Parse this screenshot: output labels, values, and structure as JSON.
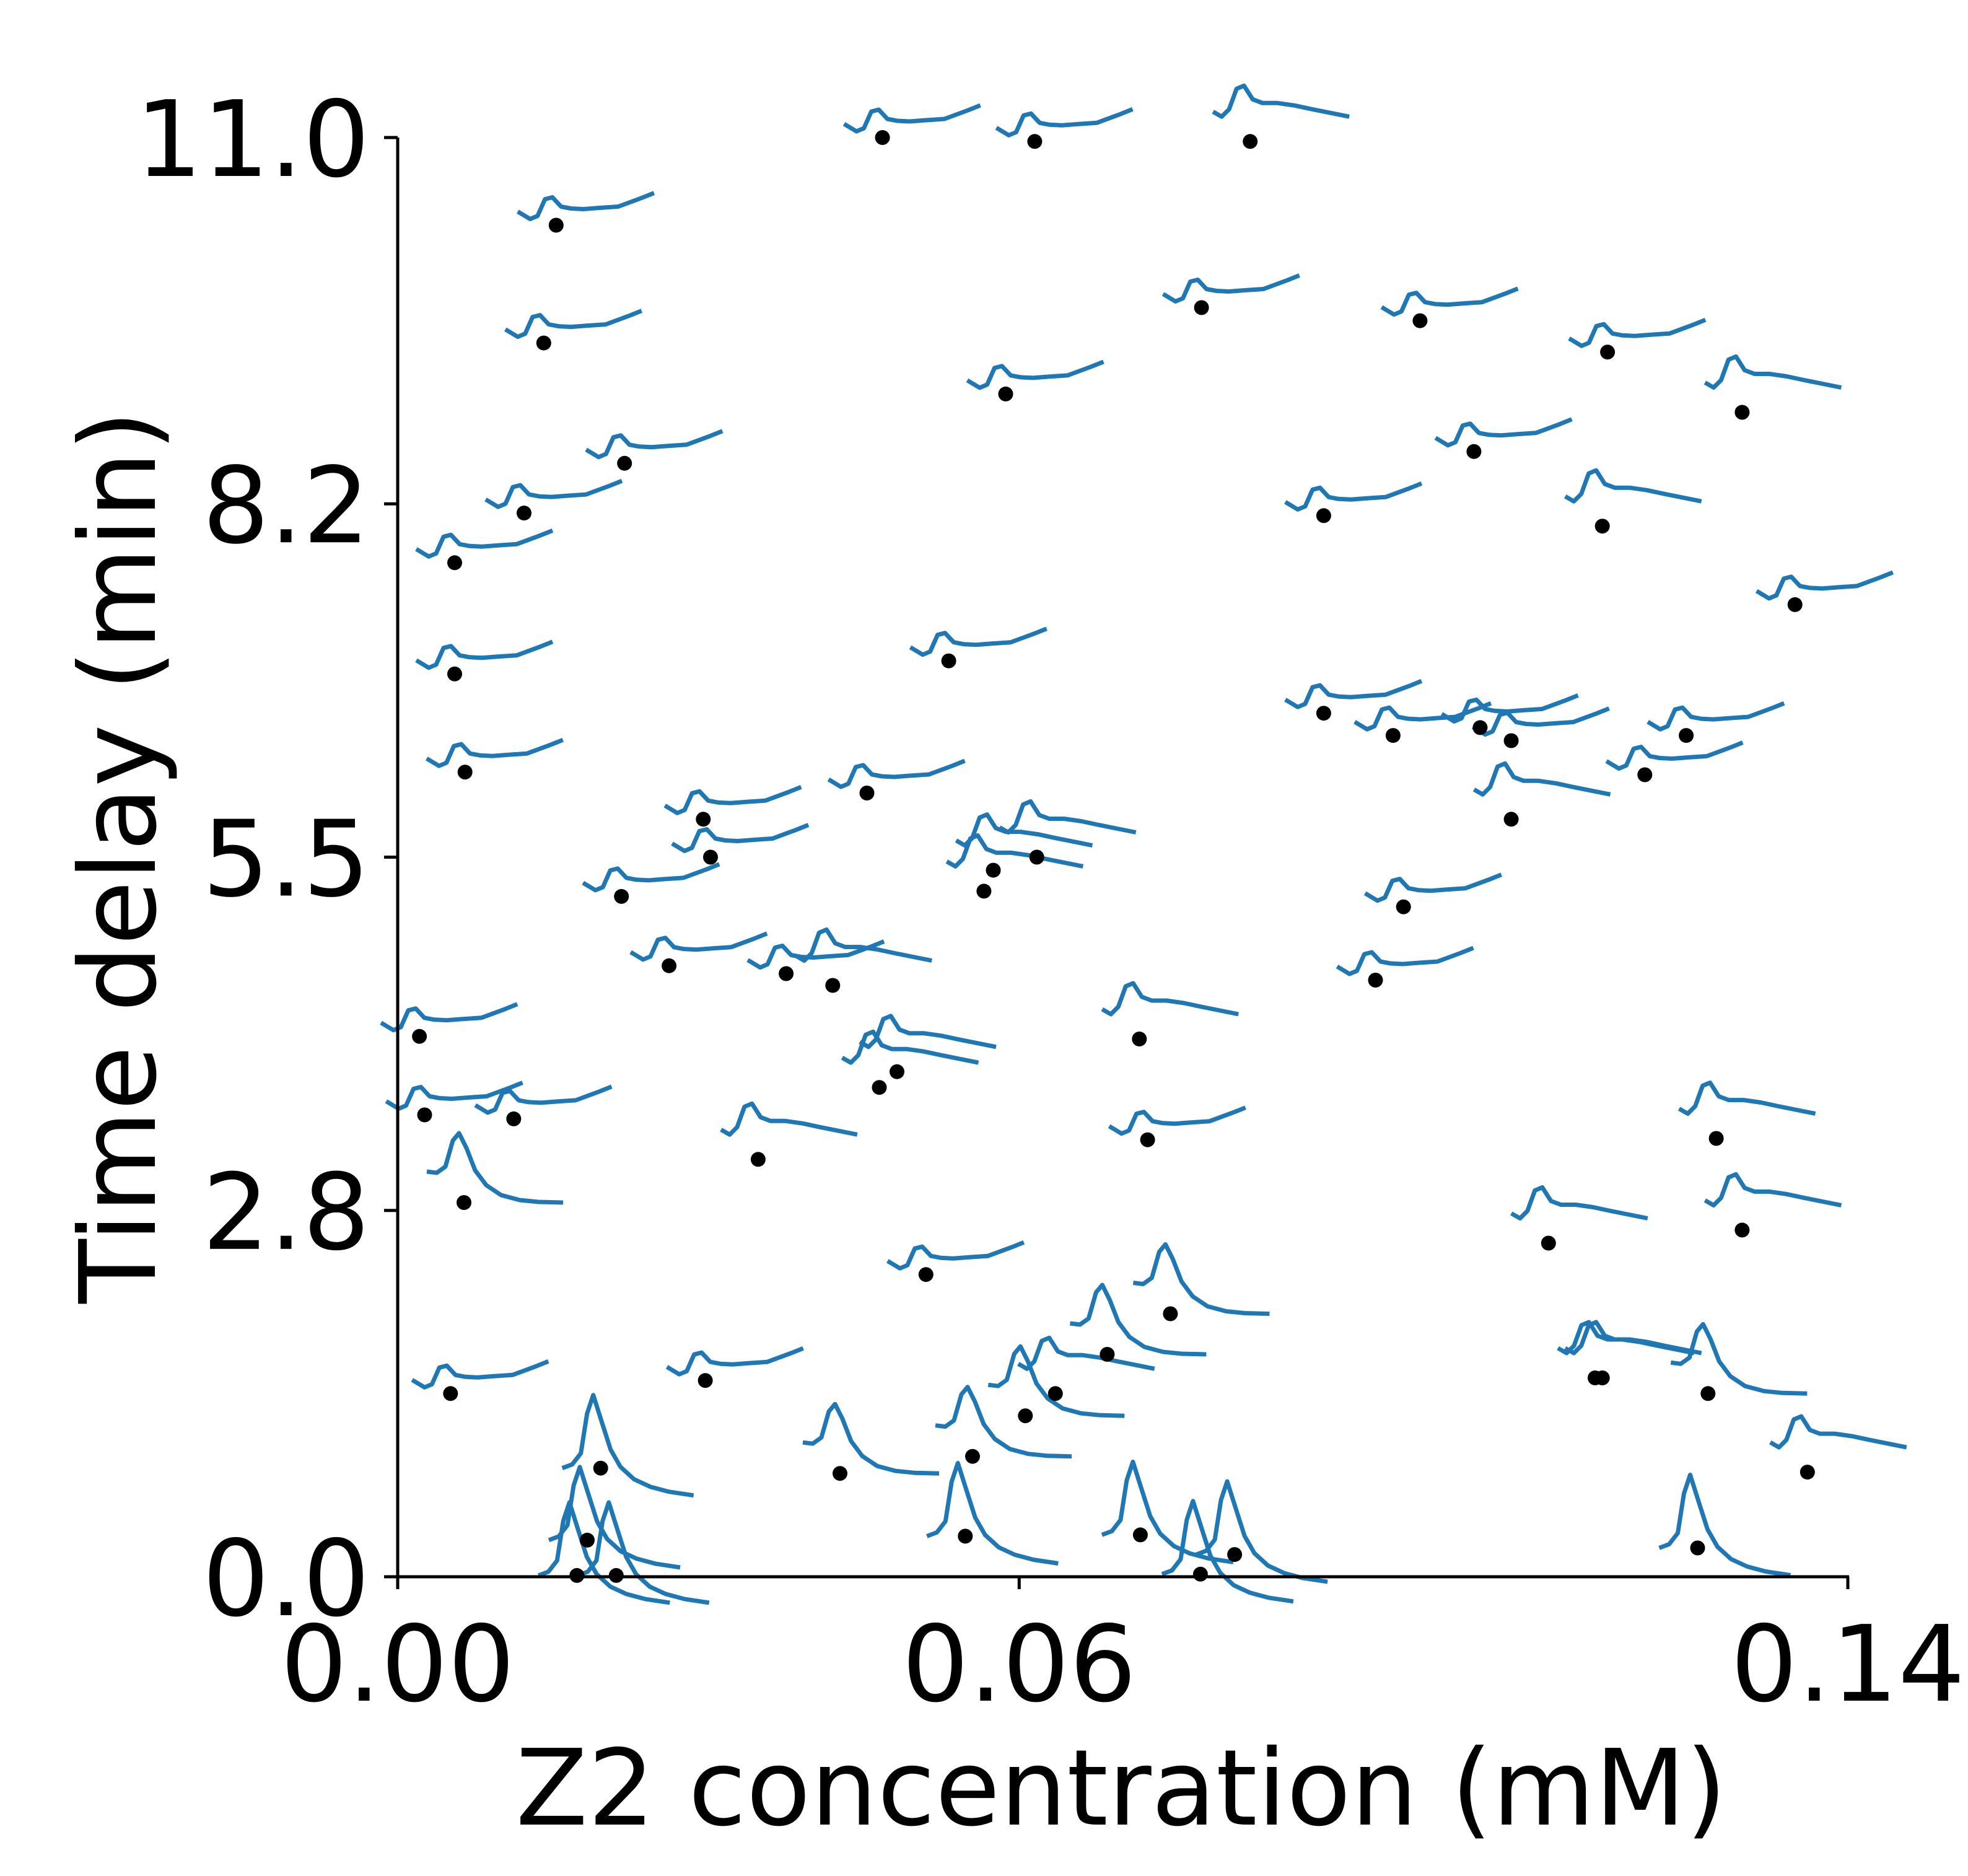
{
  "colors": {
    "trace": "#1f77b4",
    "point": "#000000",
    "axis": "#000000"
  },
  "chart_data": {
    "type": "scatter",
    "title": "",
    "xlabel": "Z2 concentration (mM)",
    "ylabel": "Time delay (min)",
    "xlim": [
      0,
      0.14
    ],
    "ylim": [
      0,
      11.0
    ],
    "x_ticks": [
      0.0,
      0.06,
      0.14
    ],
    "x_tick_labels": [
      "0.00",
      "0.06",
      "0.14"
    ],
    "y_ticks": [
      0.0,
      2.8,
      5.5,
      8.2,
      11.0
    ],
    "y_tick_labels": [
      "0.0",
      "2.8",
      "5.5",
      "8.2",
      "11.0"
    ],
    "grid": false,
    "legend": "none",
    "marker": "each point is annotated with a small response-curve glyph",
    "points": [
      {
        "x": 0.0468,
        "y": 11.0,
        "trace": "a"
      },
      {
        "x": 0.0615,
        "y": 10.97,
        "trace": "a"
      },
      {
        "x": 0.0823,
        "y": 10.97,
        "trace": "b"
      },
      {
        "x": 0.0153,
        "y": 10.33,
        "trace": "a"
      },
      {
        "x": 0.0141,
        "y": 9.43,
        "trace": "a"
      },
      {
        "x": 0.0776,
        "y": 9.7,
        "trace": "a"
      },
      {
        "x": 0.0987,
        "y": 9.6,
        "trace": "a"
      },
      {
        "x": 0.1168,
        "y": 9.36,
        "trace": "a"
      },
      {
        "x": 0.1298,
        "y": 8.9,
        "trace": "b"
      },
      {
        "x": 0.0587,
        "y": 9.04,
        "trace": "a"
      },
      {
        "x": 0.1039,
        "y": 8.6,
        "trace": "a"
      },
      {
        "x": 0.0219,
        "y": 8.51,
        "trace": "a"
      },
      {
        "x": 0.0122,
        "y": 8.13,
        "trace": "a"
      },
      {
        "x": 0.0894,
        "y": 8.11,
        "trace": "a"
      },
      {
        "x": 0.1163,
        "y": 8.03,
        "trace": "b"
      },
      {
        "x": 0.0055,
        "y": 7.75,
        "trace": "a"
      },
      {
        "x": 0.1349,
        "y": 7.43,
        "trace": "a"
      },
      {
        "x": 0.0055,
        "y": 6.9,
        "trace": "a"
      },
      {
        "x": 0.0532,
        "y": 7.0,
        "trace": "a"
      },
      {
        "x": 0.0894,
        "y": 6.6,
        "trace": "a"
      },
      {
        "x": 0.0961,
        "y": 6.43,
        "trace": "a"
      },
      {
        "x": 0.1045,
        "y": 6.49,
        "trace": "a"
      },
      {
        "x": 0.1075,
        "y": 6.39,
        "trace": "a"
      },
      {
        "x": 0.1244,
        "y": 6.43,
        "trace": "a"
      },
      {
        "x": 0.0065,
        "y": 6.15,
        "trace": "a"
      },
      {
        "x": 0.1204,
        "y": 6.13,
        "trace": "a"
      },
      {
        "x": 0.0453,
        "y": 5.99,
        "trace": "a"
      },
      {
        "x": 0.1075,
        "y": 5.79,
        "trace": "b"
      },
      {
        "x": 0.0295,
        "y": 5.79,
        "trace": "a"
      },
      {
        "x": 0.0302,
        "y": 5.5,
        "trace": "a"
      },
      {
        "x": 0.0575,
        "y": 5.4,
        "trace": "b"
      },
      {
        "x": 0.0617,
        "y": 5.5,
        "trace": "b"
      },
      {
        "x": 0.0566,
        "y": 5.24,
        "trace": "b"
      },
      {
        "x": 0.0216,
        "y": 5.2,
        "trace": "a"
      },
      {
        "x": 0.0971,
        "y": 5.12,
        "trace": "a"
      },
      {
        "x": 0.0262,
        "y": 4.67,
        "trace": "a"
      },
      {
        "x": 0.0375,
        "y": 4.61,
        "trace": "a"
      },
      {
        "x": 0.042,
        "y": 4.52,
        "trace": "b"
      },
      {
        "x": 0.0944,
        "y": 4.56,
        "trace": "a"
      },
      {
        "x": 0.0021,
        "y": 4.13,
        "trace": "a"
      },
      {
        "x": 0.0716,
        "y": 4.11,
        "trace": "b"
      },
      {
        "x": 0.0482,
        "y": 3.86,
        "trace": "b"
      },
      {
        "x": 0.0465,
        "y": 3.74,
        "trace": "b"
      },
      {
        "x": 0.0026,
        "y": 3.53,
        "trace": "a"
      },
      {
        "x": 0.0112,
        "y": 3.5,
        "trace": "a"
      },
      {
        "x": 0.0348,
        "y": 3.19,
        "trace": "b"
      },
      {
        "x": 0.0724,
        "y": 3.34,
        "trace": "a"
      },
      {
        "x": 0.1273,
        "y": 3.35,
        "trace": "b"
      },
      {
        "x": 0.0064,
        "y": 2.86,
        "trace": "c"
      },
      {
        "x": 0.1298,
        "y": 2.65,
        "trace": "b"
      },
      {
        "x": 0.1111,
        "y": 2.55,
        "trace": "b"
      },
      {
        "x": 0.051,
        "y": 2.31,
        "trace": "a"
      },
      {
        "x": 0.0746,
        "y": 2.01,
        "trace": "c"
      },
      {
        "x": 0.0685,
        "y": 1.7,
        "trace": "c"
      },
      {
        "x": 0.0051,
        "y": 1.4,
        "trace": "a"
      },
      {
        "x": 0.0297,
        "y": 1.5,
        "trace": "a"
      },
      {
        "x": 0.1156,
        "y": 1.52,
        "trace": "b"
      },
      {
        "x": 0.1163,
        "y": 1.52,
        "trace": "b"
      },
      {
        "x": 0.1265,
        "y": 1.4,
        "trace": "c"
      },
      {
        "x": 0.0635,
        "y": 1.4,
        "trace": "b"
      },
      {
        "x": 0.0606,
        "y": 1.23,
        "trace": "c"
      },
      {
        "x": 0.0555,
        "y": 0.92,
        "trace": "c"
      },
      {
        "x": 0.0427,
        "y": 0.79,
        "trace": "c"
      },
      {
        "x": 0.1361,
        "y": 0.8,
        "trace": "b"
      },
      {
        "x": 0.0196,
        "y": 0.83,
        "trace": "d"
      },
      {
        "x": 0.0548,
        "y": 0.31,
        "trace": "d"
      },
      {
        "x": 0.0717,
        "y": 0.32,
        "trace": "d"
      },
      {
        "x": 0.0808,
        "y": 0.17,
        "trace": "d"
      },
      {
        "x": 0.0183,
        "y": 0.28,
        "trace": "d"
      },
      {
        "x": 0.1255,
        "y": 0.22,
        "trace": "d"
      },
      {
        "x": 0.0173,
        "y": 0.01,
        "trace": "d"
      },
      {
        "x": 0.0211,
        "y": 0.01,
        "trace": "d"
      },
      {
        "x": 0.0775,
        "y": 0.02,
        "trace": "d"
      }
    ]
  }
}
